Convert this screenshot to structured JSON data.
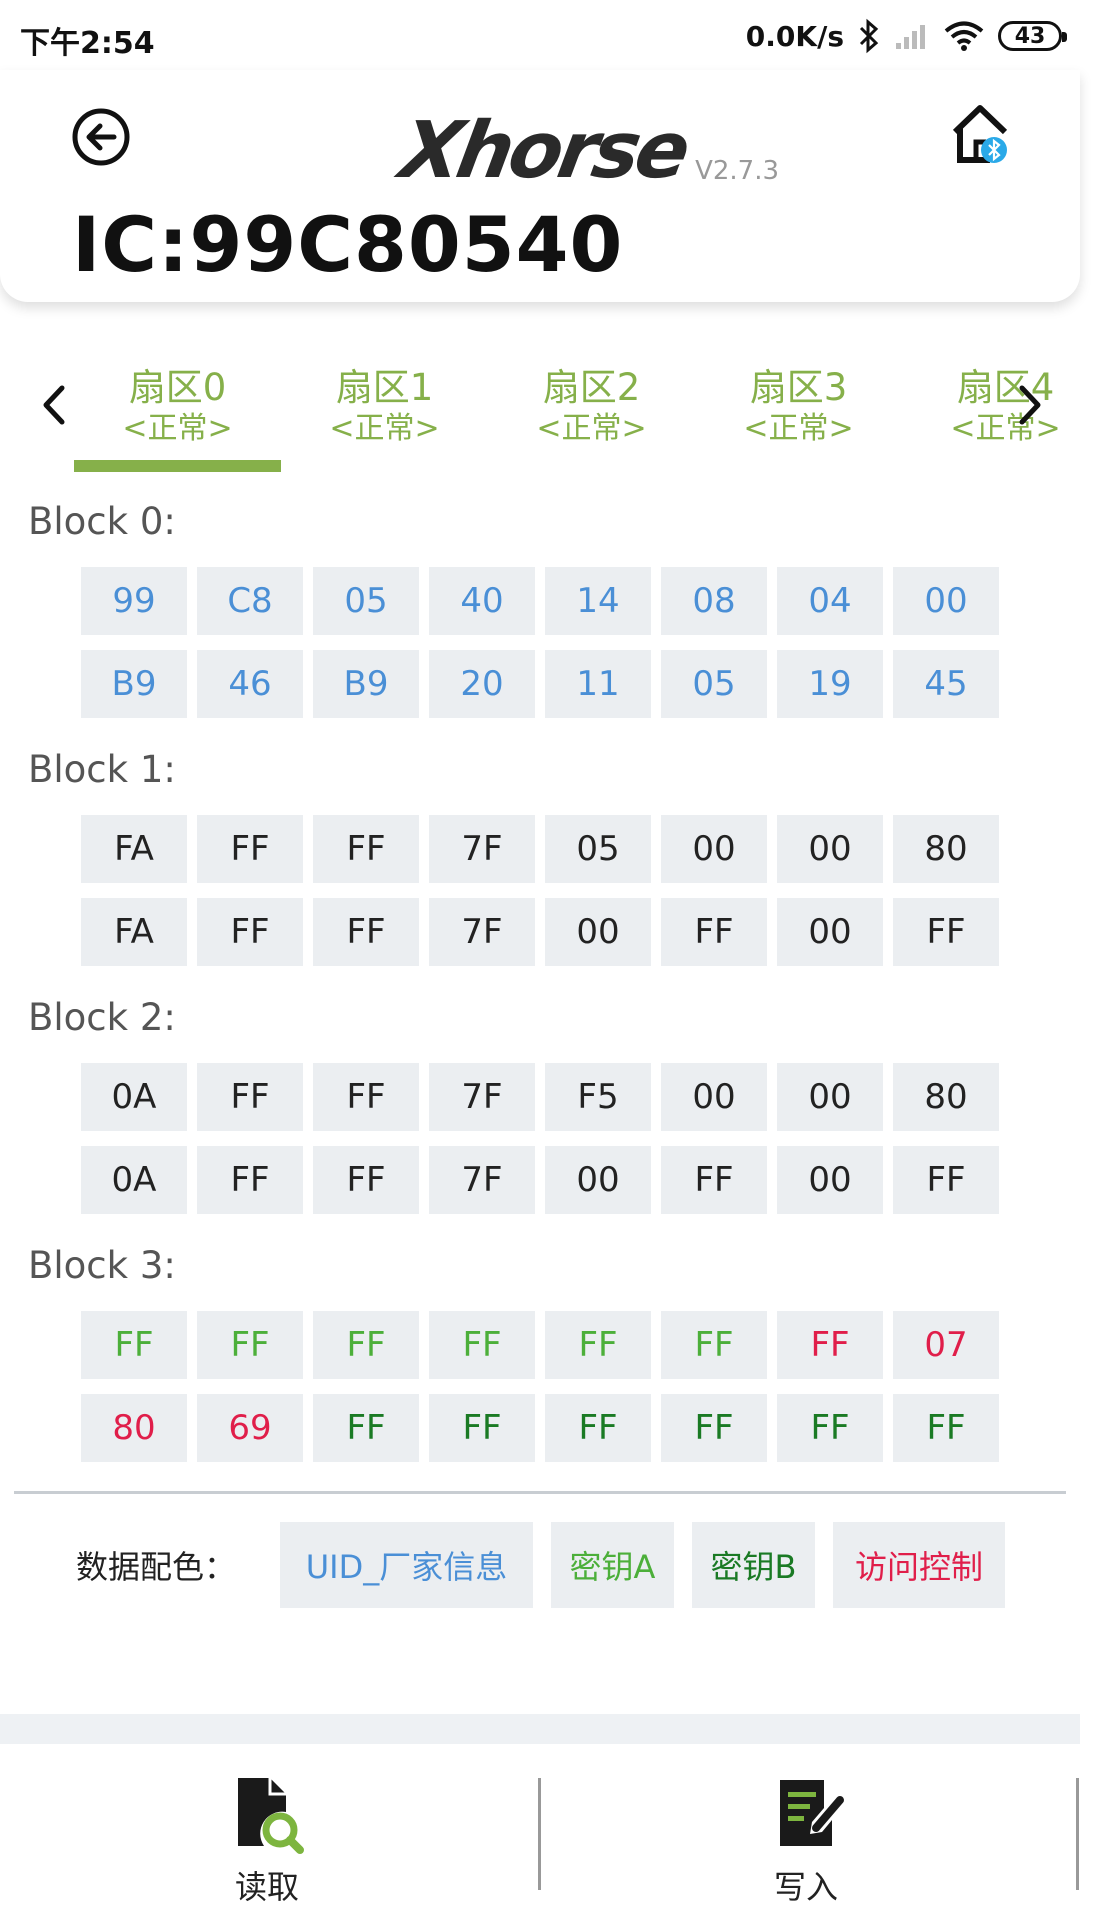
{
  "status_bar": {
    "time": "下午2:54",
    "speed": "0.0K/s",
    "battery": "43"
  },
  "header": {
    "logo": "Xhorse",
    "version": "V2.7.3",
    "title": "IC:99C80540"
  },
  "tabs": [
    {
      "name": "扇区0",
      "status": "<正常>",
      "selected": true
    },
    {
      "name": "扇区1",
      "status": "<正常>"
    },
    {
      "name": "扇区2",
      "status": "<正常>"
    },
    {
      "name": "扇区3",
      "status": "<正常>"
    },
    {
      "name": "扇区4",
      "status": "<正常>"
    }
  ],
  "blocks": [
    {
      "label": "Block 0:",
      "bytes": [
        "99",
        "C8",
        "05",
        "40",
        "14",
        "08",
        "04",
        "00",
        "B9",
        "46",
        "B9",
        "20",
        "11",
        "05",
        "19",
        "45"
      ]
    },
    {
      "label": "Block 1:",
      "bytes": [
        "FA",
        "FF",
        "FF",
        "7F",
        "05",
        "00",
        "00",
        "80",
        "FA",
        "FF",
        "FF",
        "7F",
        "00",
        "FF",
        "00",
        "FF"
      ]
    },
    {
      "label": "Block 2:",
      "bytes": [
        "0A",
        "FF",
        "FF",
        "7F",
        "F5",
        "00",
        "00",
        "80",
        "0A",
        "FF",
        "FF",
        "7F",
        "00",
        "FF",
        "00",
        "FF"
      ]
    },
    {
      "label": "Block 3:",
      "bytes": [
        "FF",
        "FF",
        "FF",
        "FF",
        "FF",
        "FF",
        "FF",
        "07",
        "80",
        "69",
        "FF",
        "FF",
        "FF",
        "FF",
        "FF",
        "FF"
      ]
    }
  ],
  "colors": {
    "uid": "#4a8fd6",
    "normal": "#222222",
    "key_a": "#4caf3a",
    "key_b": "#1a7a24",
    "access": "#e01e4a",
    "accent": "#86b04a"
  },
  "legend": {
    "label": "数据配色：",
    "items": [
      {
        "text": "UID_厂家信息"
      },
      {
        "text": "密钥A"
      },
      {
        "text": "密钥B"
      },
      {
        "text": "访问控制"
      }
    ]
  },
  "bottom_nav": {
    "read_label": "读取",
    "write_label": "写入"
  }
}
